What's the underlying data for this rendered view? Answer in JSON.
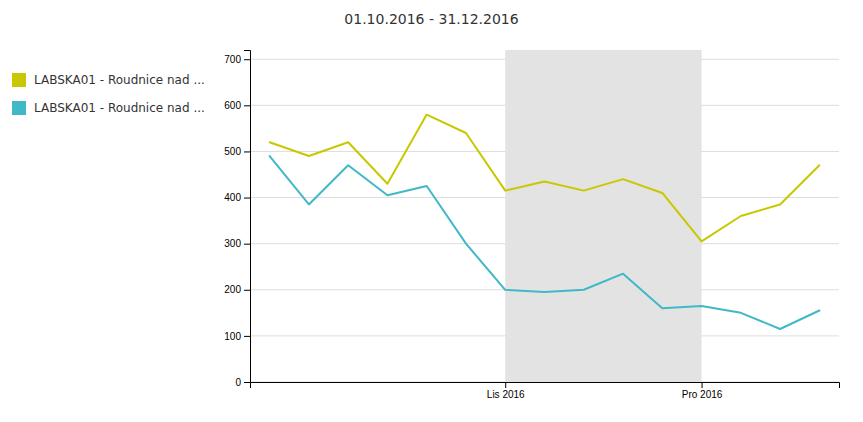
{
  "chart_data": {
    "type": "line",
    "title": "01.10.2016 - 31.12.2016",
    "x": [
      0,
      1,
      2,
      3,
      4,
      5,
      6,
      7,
      8,
      9,
      10,
      11,
      12,
      13,
      14
    ],
    "series": [
      {
        "name": "LABSKA01 - Roudnice nad ...",
        "color": "#c8c800",
        "values": [
          520,
          490,
          520,
          430,
          580,
          540,
          415,
          435,
          415,
          440,
          410,
          305,
          360,
          385,
          470
        ]
      },
      {
        "name": "LABSKA01 - Roudnice nad ...",
        "color": "#40b8c8",
        "values": [
          490,
          385,
          470,
          405,
          425,
          300,
          200,
          195,
          200,
          235,
          160,
          165,
          150,
          115,
          155
        ]
      }
    ],
    "xlim": [
      -0.5,
      14.5
    ],
    "xticks": [
      {
        "value": 6,
        "label": "Lis 2016"
      },
      {
        "value": 11,
        "label": "Pro 2016"
      }
    ],
    "ylim": [
      0,
      720
    ],
    "yticks": [
      0,
      100,
      200,
      300,
      400,
      500,
      600,
      700
    ],
    "highlight": [
      6,
      11
    ],
    "grid": true,
    "legend": "left"
  }
}
